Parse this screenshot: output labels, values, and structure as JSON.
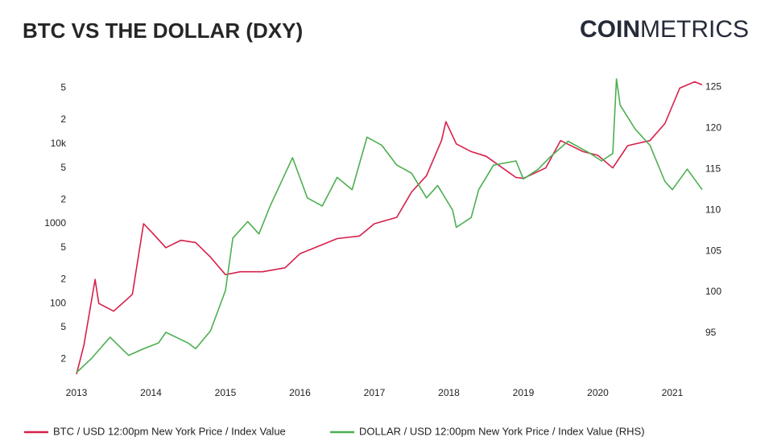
{
  "chart_data": {
    "type": "line",
    "title": "BTC VS THE DOLLAR (DXY)",
    "logo": {
      "bold": "COIN",
      "light": "METRICS"
    },
    "xlim": [
      2013,
      2021.4
    ],
    "xticks": [
      2013,
      2014,
      2015,
      2016,
      2017,
      2018,
      2019,
      2020,
      2021
    ],
    "ylim": [
      13,
      70000
    ],
    "log_y": true,
    "yticks": [
      {
        "value": 20,
        "label": "2"
      },
      {
        "value": 50,
        "label": "5"
      },
      100,
      {
        "value": 200,
        "label": "2"
      },
      {
        "value": 500,
        "label": "5"
      },
      1000,
      {
        "value": 2000,
        "label": "2"
      },
      {
        "value": 5000,
        "label": "5"
      },
      {
        "value": 10000,
        "label": "10k"
      },
      {
        "value": 20000,
        "label": "2"
      },
      {
        "value": 50000,
        "label": "5"
      }
    ],
    "y2lim": [
      90,
      126.3
    ],
    "y2ticks": [
      95,
      100,
      105,
      110,
      115,
      120,
      125
    ],
    "grid": false,
    "legend": "bottom",
    "series": [
      {
        "name": "BTC / USD 12:00pm New York Price / Index Value",
        "color": "#d6204b",
        "x": [
          2013.0,
          2013.1,
          2013.25,
          2013.3,
          2013.5,
          2013.75,
          2013.9,
          2014.0,
          2014.2,
          2014.4,
          2014.6,
          2014.8,
          2015.0,
          2015.2,
          2015.5,
          2015.8,
          2016.0,
          2016.5,
          2016.8,
          2017.0,
          2017.3,
          2017.5,
          2017.7,
          2017.9,
          2017.96,
          2018.1,
          2018.3,
          2018.5,
          2018.9,
          2019.0,
          2019.3,
          2019.5,
          2019.8,
          2020.0,
          2020.2,
          2020.4,
          2020.7,
          2020.9,
          2021.0,
          2021.1,
          2021.3,
          2021.4
        ],
        "values": [
          13,
          30,
          200,
          100,
          80,
          130,
          1000,
          800,
          500,
          620,
          580,
          380,
          230,
          250,
          250,
          280,
          420,
          650,
          700,
          1000,
          1200,
          2500,
          4000,
          11000,
          19000,
          10000,
          8000,
          7000,
          3800,
          3700,
          5000,
          11000,
          8000,
          7200,
          5000,
          9500,
          11000,
          18000,
          30000,
          50000,
          60000,
          55000
        ]
      },
      {
        "name": "DOLLAR / USD 12:00pm New York Price / Index Value (RHS)",
        "color": "#4caf50",
        "axis": "y2",
        "x": [
          2013.0,
          2013.2,
          2013.45,
          2013.7,
          2013.9,
          2014.1,
          2014.2,
          2014.5,
          2014.6,
          2014.8,
          2015.0,
          2015.1,
          2015.3,
          2015.45,
          2015.6,
          2015.9,
          2016.1,
          2016.3,
          2016.5,
          2016.7,
          2016.9,
          2017.1,
          2017.3,
          2017.5,
          2017.7,
          2017.85,
          2018.05,
          2018.1,
          2018.3,
          2018.4,
          2018.6,
          2018.9,
          2019.0,
          2019.2,
          2019.35,
          2019.6,
          2019.9,
          2020.05,
          2020.2,
          2020.25,
          2020.3,
          2020.5,
          2020.7,
          2020.9,
          2021.0,
          2021.2,
          2021.4
        ],
        "values": [
          90.2,
          91.9,
          94.5,
          92.3,
          93.1,
          93.8,
          95.1,
          93.8,
          93.1,
          95.3,
          100.2,
          106.6,
          108.6,
          107.1,
          110.5,
          116.4,
          111.5,
          110.5,
          114,
          112.5,
          118.9,
          117.9,
          115.5,
          114.5,
          111.5,
          113,
          110,
          107.9,
          109.1,
          112.5,
          115.5,
          116,
          113.8,
          115,
          116.4,
          118.4,
          116.9,
          116,
          116.9,
          126,
          122.8,
          119.9,
          117.9,
          113.5,
          112.5,
          115,
          112.5
        ]
      }
    ]
  }
}
